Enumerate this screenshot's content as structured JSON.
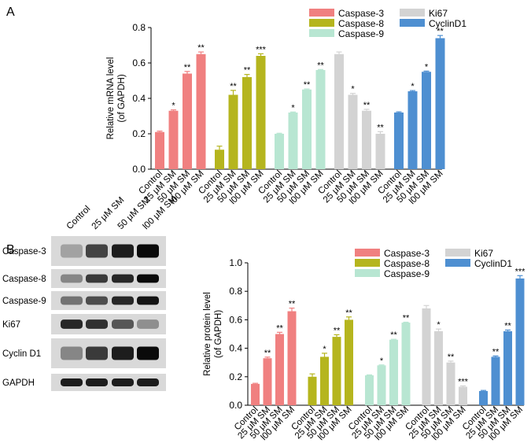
{
  "colors": {
    "caspase3": "#f08080",
    "caspase8": "#b5b51e",
    "caspase9": "#b8e6d2",
    "ki67": "#d3d3d3",
    "cyclind1": "#4e8fd1",
    "blot_bg": "#ffffff"
  },
  "chart_data": [
    {
      "type": "bar",
      "panel_label": "A",
      "ylabel_line1": "Relative mRNA level",
      "ylabel_line2": "(of GAPDH)",
      "ylim": [
        0,
        0.8
      ],
      "yticks": [
        "0.0",
        "0.2",
        "0.4",
        "0.6",
        "0.8"
      ],
      "categories": [
        "Control",
        "25 μM SM",
        "50 μM SM",
        "l00 μM SM"
      ],
      "legend": [
        "Caspase-3",
        "Caspase-8",
        "Caspase-9",
        "Ki67",
        "CyclinD1"
      ],
      "series": [
        {
          "name": "Caspase-3",
          "values": [
            0.21,
            0.33,
            0.54,
            0.65
          ],
          "errors": [
            0.005,
            0.005,
            0.012,
            0.012
          ],
          "sig": [
            "",
            "*",
            "**",
            "**"
          ]
        },
        {
          "name": "Caspase-8",
          "values": [
            0.11,
            0.42,
            0.52,
            0.64
          ],
          "errors": [
            0.02,
            0.025,
            0.015,
            0.012
          ],
          "sig": [
            "",
            "**",
            "**",
            "***"
          ]
        },
        {
          "name": "Caspase-9",
          "values": [
            0.2,
            0.32,
            0.45,
            0.56
          ],
          "errors": [
            0.003,
            0.003,
            0.003,
            0.003
          ],
          "sig": [
            "",
            "*",
            "**",
            "**"
          ]
        },
        {
          "name": "Ki67",
          "values": [
            0.65,
            0.42,
            0.33,
            0.2
          ],
          "errors": [
            0.012,
            0.008,
            0.008,
            0.012
          ],
          "sig": [
            "",
            "*",
            "**",
            "**"
          ]
        },
        {
          "name": "CyclinD1",
          "values": [
            0.32,
            0.44,
            0.55,
            0.74
          ],
          "errors": [
            0.004,
            0.004,
            0.004,
            0.015
          ],
          "sig": [
            "",
            "*",
            "*",
            "**"
          ]
        }
      ]
    },
    {
      "type": "bar",
      "panel_label": "B",
      "ylabel_line1": "Relative protein level",
      "ylabel_line2": "(of GAPDH)",
      "ylim": [
        0,
        1.0
      ],
      "yticks": [
        "0.0",
        "0.2",
        "0.4",
        "0.6",
        "0.8",
        "1.0"
      ],
      "categories": [
        "Control",
        "25 μM SM",
        "50 μM SM",
        "l00 μM SM"
      ],
      "legend": [
        "Caspase-3",
        "Caspase-8",
        "Caspase-9",
        "Ki67",
        "CyclinD1"
      ],
      "series": [
        {
          "name": "Caspase-3",
          "values": [
            0.15,
            0.33,
            0.5,
            0.66
          ],
          "errors": [
            0.004,
            0.008,
            0.012,
            0.022
          ],
          "sig": [
            "",
            "**",
            "**",
            "**"
          ]
        },
        {
          "name": "Caspase-8",
          "values": [
            0.2,
            0.34,
            0.48,
            0.6
          ],
          "errors": [
            0.02,
            0.025,
            0.015,
            0.02
          ],
          "sig": [
            "",
            "*",
            "**",
            "**"
          ]
        },
        {
          "name": "Caspase-9",
          "values": [
            0.21,
            0.28,
            0.46,
            0.58
          ],
          "errors": [
            0.003,
            0.003,
            0.003,
            0.003
          ],
          "sig": [
            "",
            "*",
            "**",
            "**"
          ]
        },
        {
          "name": "Ki67",
          "values": [
            0.68,
            0.52,
            0.3,
            0.13
          ],
          "errors": [
            0.02,
            0.015,
            0.01,
            0.006
          ],
          "sig": [
            "",
            "*",
            "**",
            "***"
          ]
        },
        {
          "name": "CyclinD1",
          "values": [
            0.1,
            0.34,
            0.52,
            0.89
          ],
          "errors": [
            0.004,
            0.006,
            0.008,
            0.02
          ],
          "sig": [
            "",
            "**",
            "**",
            "***"
          ]
        }
      ]
    }
  ],
  "blot": {
    "lanes": [
      "Control",
      "25 μM SM",
      "50 μM SM",
      "l00 μM SM"
    ],
    "rows": [
      {
        "label": "Caspase-3",
        "intensities": [
          0.2,
          0.7,
          0.9,
          1.0
        ]
      },
      {
        "label": "Caspase-8",
        "intensities": [
          0.35,
          0.75,
          0.85,
          1.0
        ]
      },
      {
        "label": "Caspase-9",
        "intensities": [
          0.45,
          0.65,
          0.85,
          0.95
        ]
      },
      {
        "label": "Ki67",
        "intensities": [
          0.85,
          0.8,
          0.6,
          0.3
        ]
      },
      {
        "label": "Cyclin D1",
        "intensities": [
          0.35,
          0.75,
          0.9,
          1.0
        ]
      },
      {
        "label": "GAPDH",
        "intensities": [
          0.9,
          0.9,
          0.9,
          0.9
        ]
      }
    ]
  }
}
